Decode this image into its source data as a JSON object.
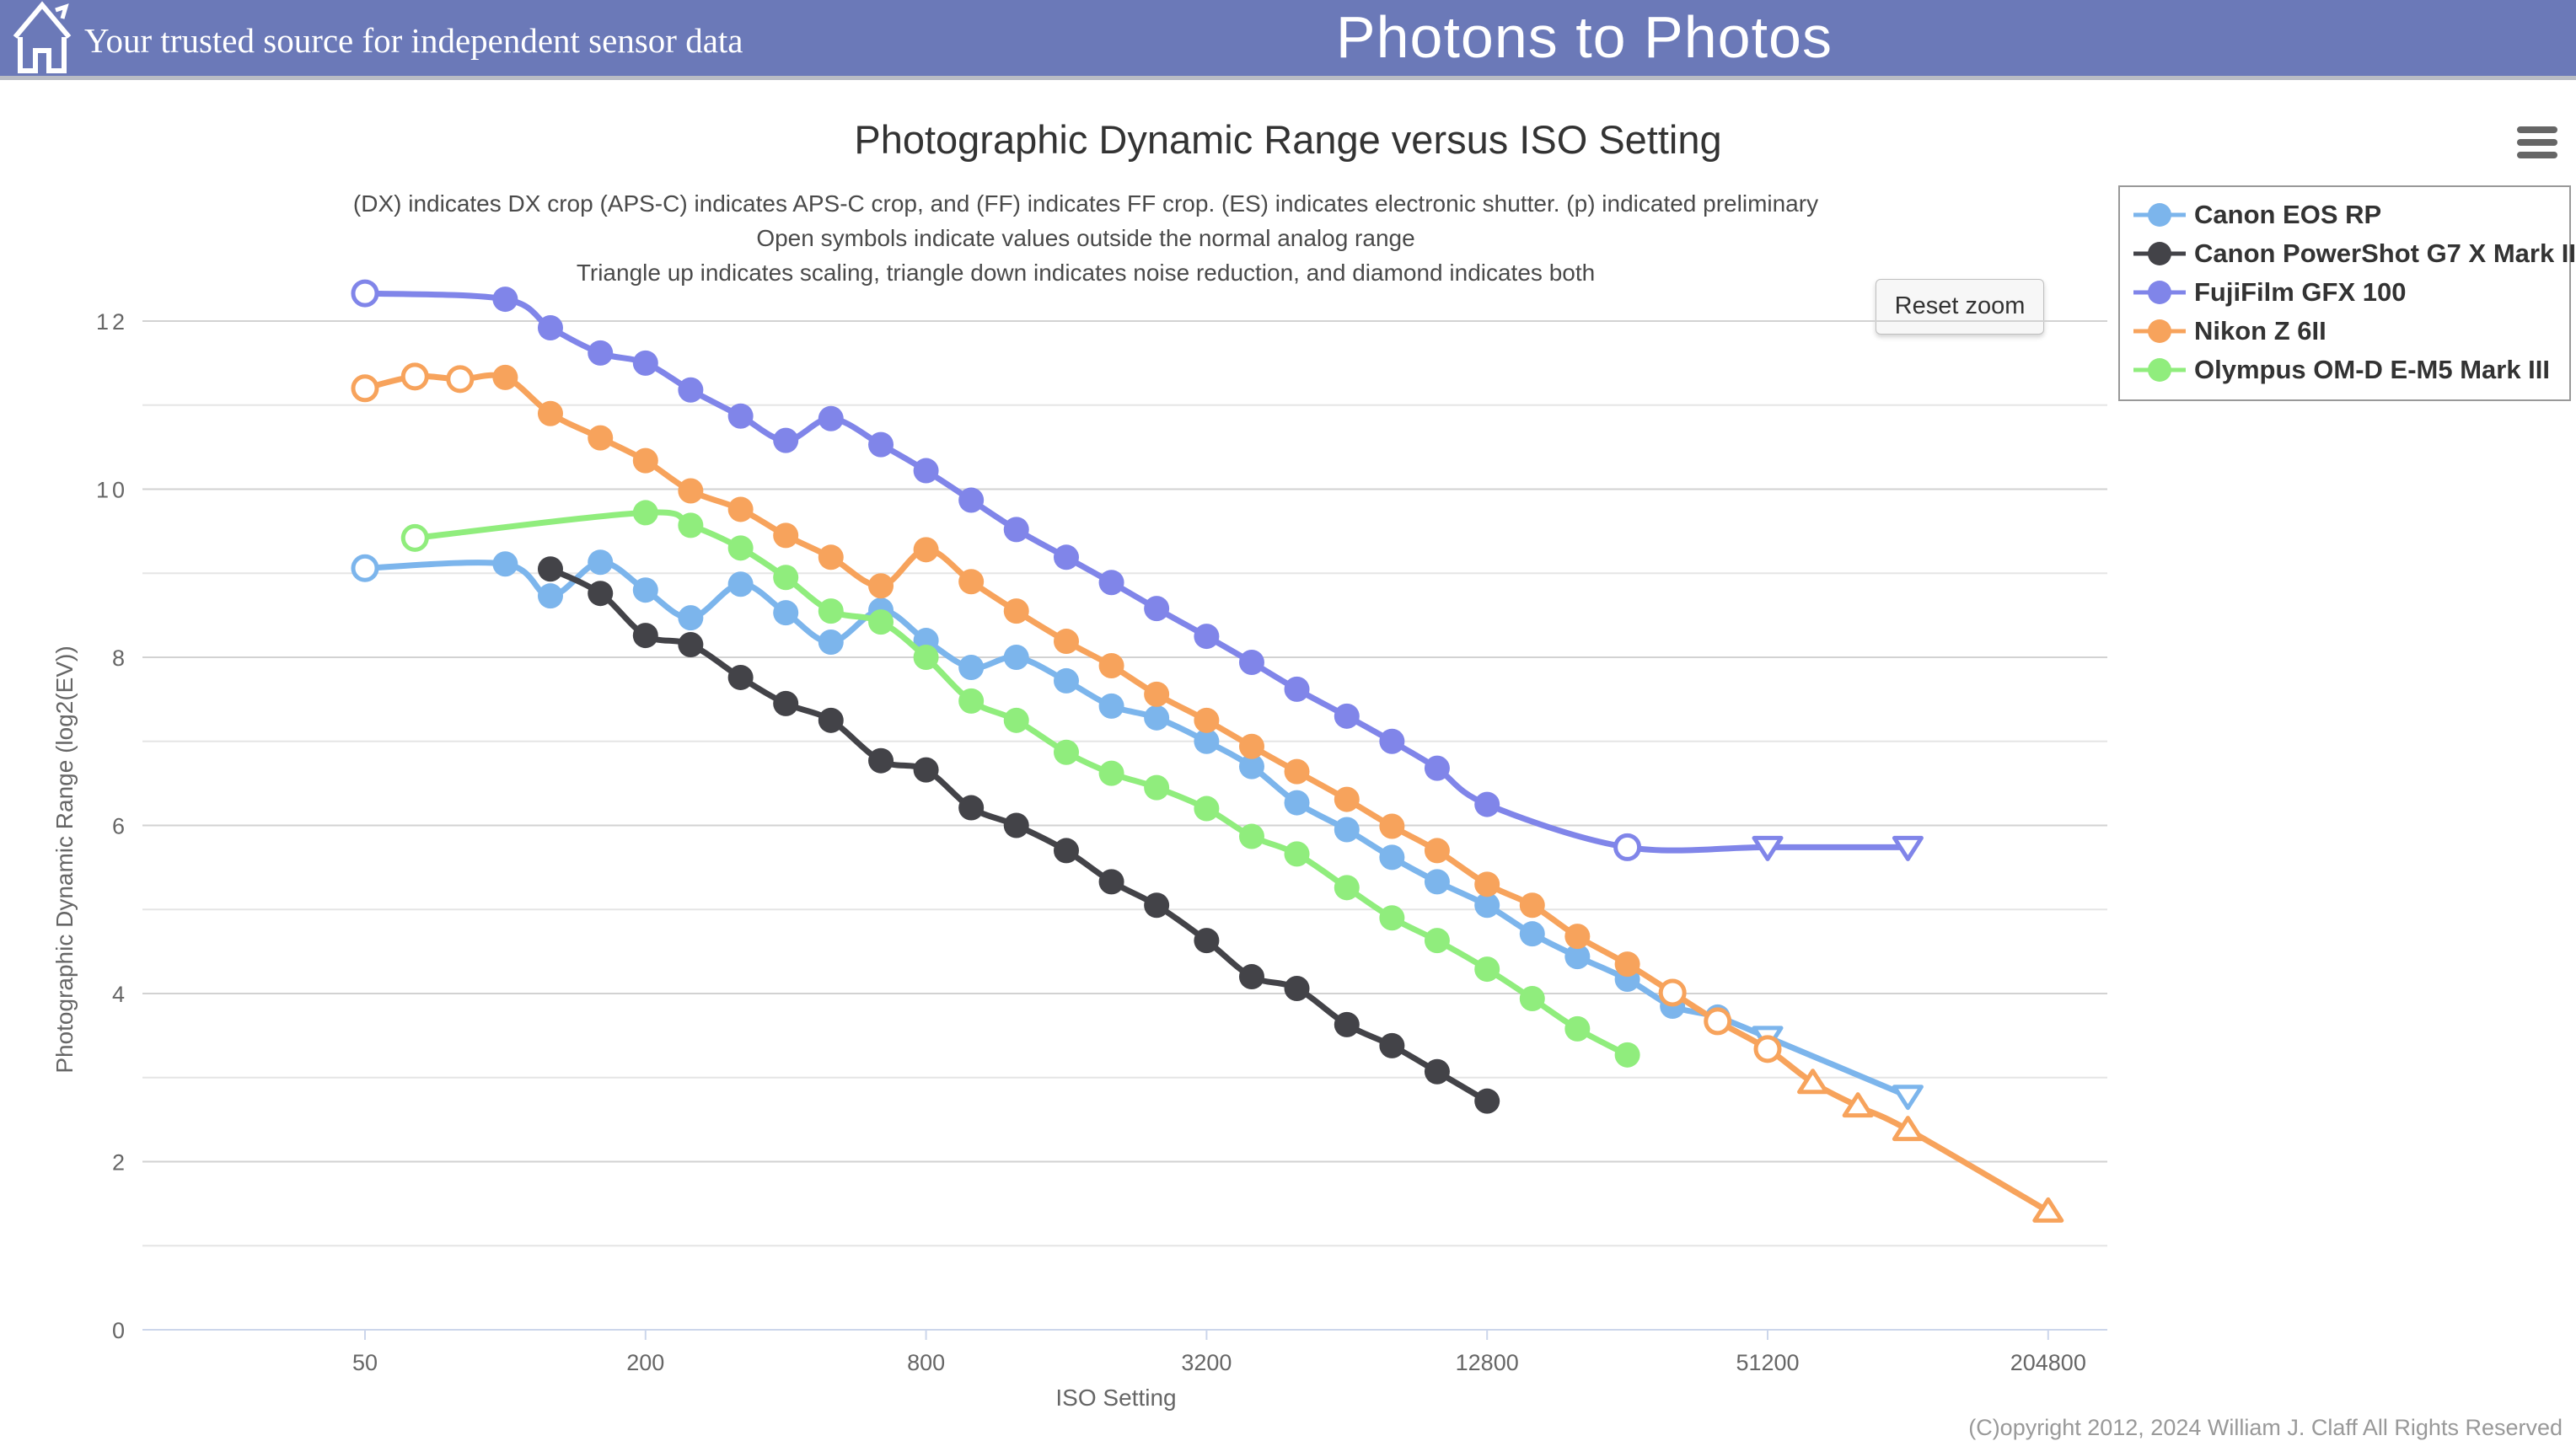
{
  "header": {
    "tagline": "Your trusted source for independent sensor data",
    "site_title": "Photons to Photos",
    "background_color": "#6b79b8"
  },
  "chart": {
    "title": "Photographic Dynamic Range versus ISO Setting",
    "subtitle_line1": "(DX) indicates DX crop (APS-C) indicates APS-C crop, and (FF) indicates FF crop. (ES) indicates electronic shutter. (p) indicated preliminary",
    "subtitle_line2": "Open symbols indicate values outside the normal analog range",
    "subtitle_line3": "Triangle up indicates scaling, triangle down indicates noise reduction, and diamond indicates both",
    "reset_zoom_label": "Reset zoom",
    "menu_icon": "hamburger-icon",
    "footer": "(C)opyright 2012, 2024 William J. Claff All Rights Reserved"
  },
  "chart_data": {
    "type": "line",
    "line_style": "spline",
    "title": "Photographic Dynamic Range versus ISO Setting",
    "xlabel": "ISO Setting",
    "ylabel": "Photographic Dynamic Range (log2(EV))",
    "x_scale": "log2",
    "x_ticks": [
      50,
      200,
      800,
      3200,
      12800,
      51200,
      204800
    ],
    "y_ticks": [
      0,
      2,
      4,
      6,
      8,
      10,
      12
    ],
    "ylim": [
      0,
      12.6
    ],
    "grid": "horizontal-only",
    "legend_position": "top-right",
    "marker_legend": {
      "open": "value outside normal analog range",
      "triangle_up": "scaling",
      "triangle_down": "noise reduction",
      "diamond": "both"
    },
    "series": [
      {
        "name": "Canon EOS RP",
        "color": "#7cb5ec",
        "points": [
          [
            50,
            9.06,
            "open-circle"
          ],
          [
            100,
            9.11
          ],
          [
            125,
            8.73
          ],
          [
            160,
            9.13
          ],
          [
            200,
            8.8
          ],
          [
            250,
            8.47
          ],
          [
            320,
            8.87
          ],
          [
            400,
            8.53
          ],
          [
            500,
            8.18
          ],
          [
            640,
            8.56
          ],
          [
            800,
            8.2
          ],
          [
            1000,
            7.88
          ],
          [
            1250,
            8.0
          ],
          [
            1600,
            7.72
          ],
          [
            2000,
            7.42
          ],
          [
            2500,
            7.28
          ],
          [
            3200,
            7.0
          ],
          [
            4000,
            6.7
          ],
          [
            5000,
            6.27
          ],
          [
            6400,
            5.95
          ],
          [
            8000,
            5.62
          ],
          [
            10000,
            5.33
          ],
          [
            12800,
            5.05
          ],
          [
            16000,
            4.71
          ],
          [
            20000,
            4.44
          ],
          [
            25600,
            4.17
          ],
          [
            32000,
            3.85
          ],
          [
            40000,
            3.72
          ],
          [
            51200,
            3.48,
            "open-tri-down"
          ],
          [
            102400,
            2.78,
            "open-tri-down"
          ]
        ]
      },
      {
        "name": "Canon PowerShot G7 X Mark II",
        "color": "#434348",
        "points": [
          [
            125,
            9.05
          ],
          [
            160,
            8.76
          ],
          [
            200,
            8.26
          ],
          [
            250,
            8.15
          ],
          [
            320,
            7.76
          ],
          [
            400,
            7.45
          ],
          [
            500,
            7.25
          ],
          [
            640,
            6.77
          ],
          [
            800,
            6.66
          ],
          [
            1000,
            6.21
          ],
          [
            1250,
            6.0
          ],
          [
            1600,
            5.7
          ],
          [
            2000,
            5.33
          ],
          [
            2500,
            5.05
          ],
          [
            3200,
            4.63
          ],
          [
            4000,
            4.2
          ],
          [
            5000,
            4.06
          ],
          [
            6400,
            3.63
          ],
          [
            8000,
            3.38
          ],
          [
            10000,
            3.07
          ],
          [
            12800,
            2.72
          ]
        ]
      },
      {
        "name": "FujiFilm GFX 100",
        "color": "#8085e9",
        "points": [
          [
            50,
            12.33,
            "open-circle"
          ],
          [
            100,
            12.26
          ],
          [
            125,
            11.92
          ],
          [
            160,
            11.62
          ],
          [
            200,
            11.5
          ],
          [
            250,
            11.18
          ],
          [
            320,
            10.87
          ],
          [
            400,
            10.58
          ],
          [
            500,
            10.84
          ],
          [
            640,
            10.53
          ],
          [
            800,
            10.22
          ],
          [
            1000,
            9.87
          ],
          [
            1250,
            9.52
          ],
          [
            1600,
            9.19
          ],
          [
            2000,
            8.89
          ],
          [
            2500,
            8.58
          ],
          [
            3200,
            8.25
          ],
          [
            4000,
            7.94
          ],
          [
            5000,
            7.62
          ],
          [
            6400,
            7.3
          ],
          [
            8000,
            7.0
          ],
          [
            10000,
            6.68
          ],
          [
            12800,
            6.25
          ],
          [
            25600,
            5.74,
            "open-circle"
          ],
          [
            51200,
            5.74,
            "open-tri-down"
          ],
          [
            102400,
            5.74,
            "open-tri-down"
          ]
        ]
      },
      {
        "name": "Nikon Z 6II",
        "color": "#f7a35c",
        "points": [
          [
            50,
            11.2,
            "open-circle"
          ],
          [
            64,
            11.34,
            "open-circle"
          ],
          [
            80,
            11.31,
            "open-circle"
          ],
          [
            100,
            11.33
          ],
          [
            125,
            10.9
          ],
          [
            160,
            10.61
          ],
          [
            200,
            10.34
          ],
          [
            250,
            9.98
          ],
          [
            320,
            9.76
          ],
          [
            400,
            9.45
          ],
          [
            500,
            9.19
          ],
          [
            640,
            8.85
          ],
          [
            800,
            9.28
          ],
          [
            1000,
            8.9
          ],
          [
            1250,
            8.55
          ],
          [
            1600,
            8.19
          ],
          [
            2000,
            7.9
          ],
          [
            2500,
            7.56
          ],
          [
            3200,
            7.25
          ],
          [
            4000,
            6.94
          ],
          [
            5000,
            6.64
          ],
          [
            6400,
            6.31
          ],
          [
            8000,
            5.99
          ],
          [
            10000,
            5.7
          ],
          [
            12800,
            5.3
          ],
          [
            16000,
            5.05
          ],
          [
            20000,
            4.68
          ],
          [
            25600,
            4.35
          ],
          [
            32000,
            4.01,
            "open-circle"
          ],
          [
            40000,
            3.67,
            "open-circle"
          ],
          [
            51200,
            3.34,
            "open-circle"
          ],
          [
            64000,
            2.94,
            "open-tri-up"
          ],
          [
            80000,
            2.66,
            "open-tri-up"
          ],
          [
            102400,
            2.38,
            "open-tri-up"
          ],
          [
            204800,
            1.41,
            "open-tri-up"
          ]
        ]
      },
      {
        "name": "Olympus OM-D E-M5 Mark III",
        "color": "#90ed7d",
        "points": [
          [
            64,
            9.42,
            "open-circle"
          ],
          [
            200,
            9.72
          ],
          [
            250,
            9.57
          ],
          [
            320,
            9.3
          ],
          [
            400,
            8.95
          ],
          [
            500,
            8.55
          ],
          [
            640,
            8.42
          ],
          [
            800,
            8.0
          ],
          [
            1000,
            7.48
          ],
          [
            1250,
            7.25
          ],
          [
            1600,
            6.87
          ],
          [
            2000,
            6.62
          ],
          [
            2500,
            6.45
          ],
          [
            3200,
            6.2
          ],
          [
            4000,
            5.87
          ],
          [
            5000,
            5.66
          ],
          [
            6400,
            5.26
          ],
          [
            8000,
            4.9
          ],
          [
            10000,
            4.63
          ],
          [
            12800,
            4.29
          ],
          [
            16000,
            3.94
          ],
          [
            20000,
            3.58
          ],
          [
            25600,
            3.27
          ]
        ]
      }
    ]
  }
}
